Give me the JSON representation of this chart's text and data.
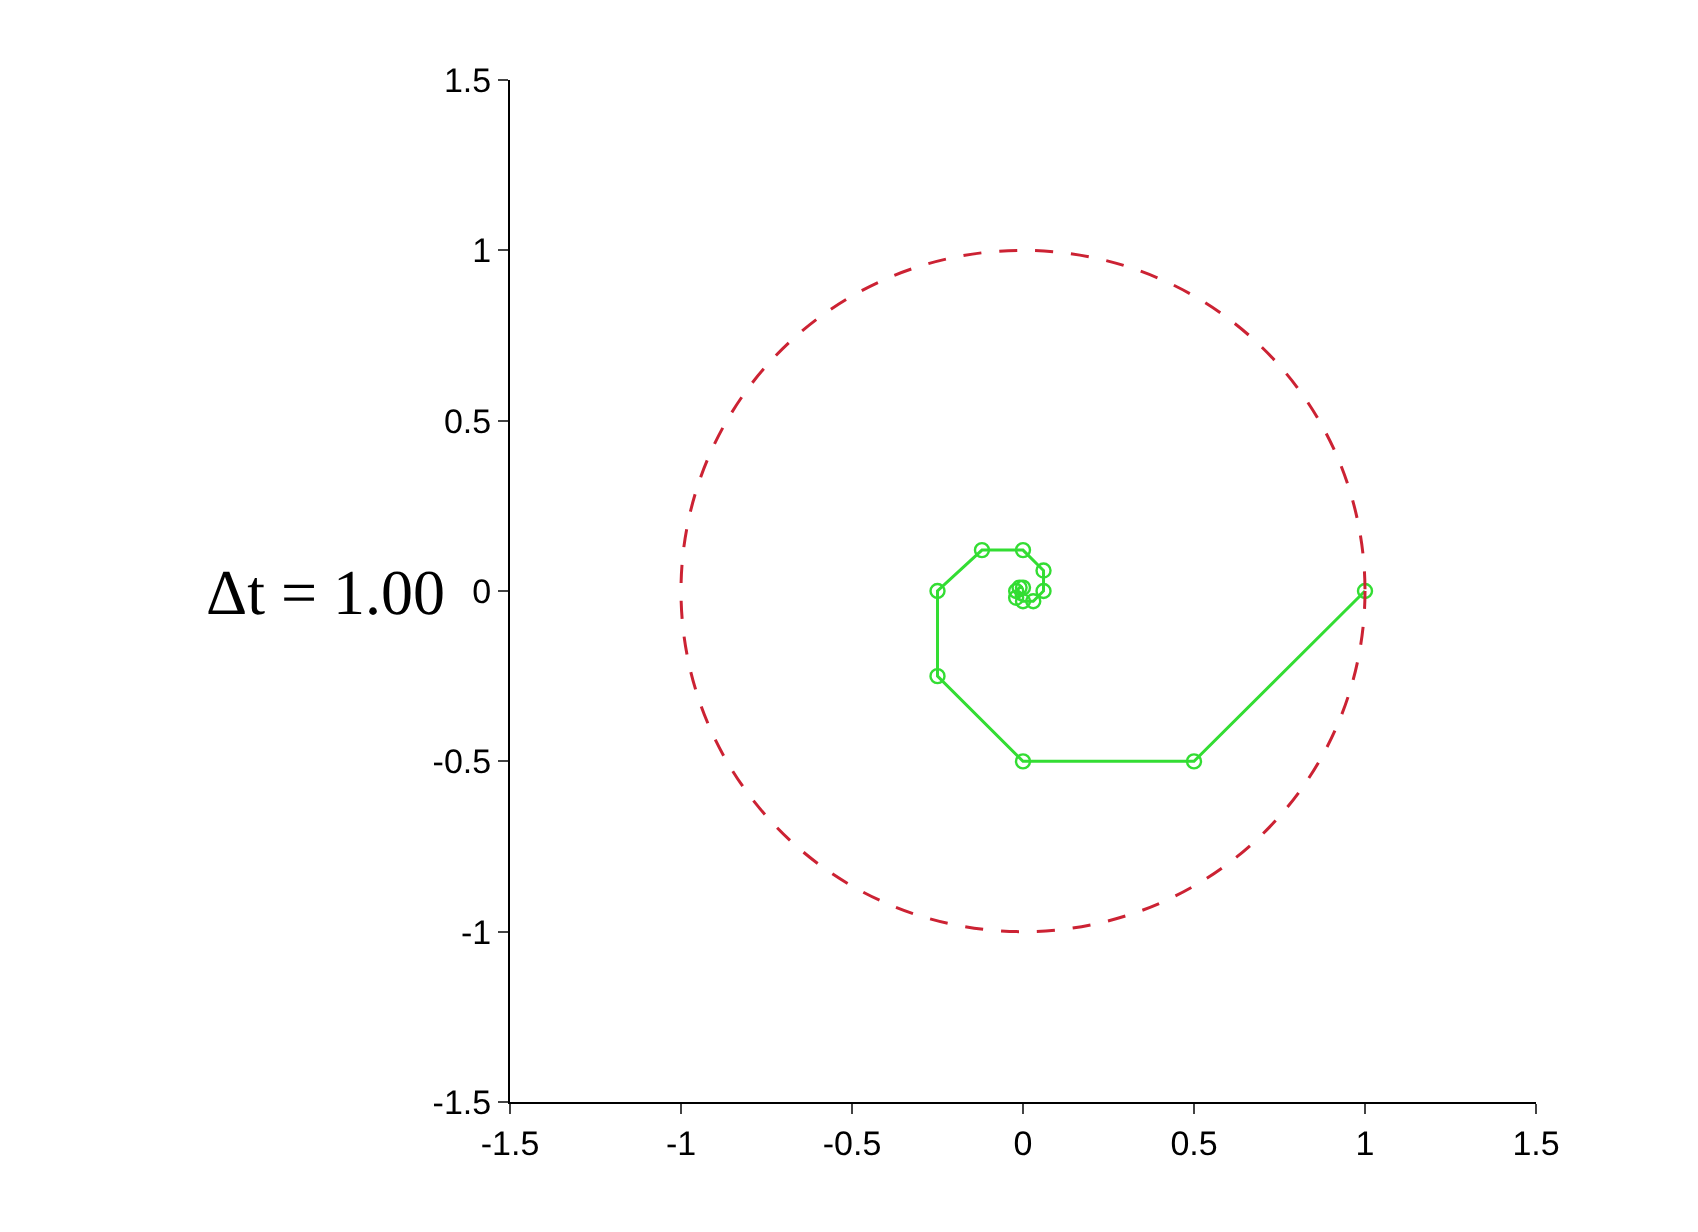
{
  "chart_data": {
    "type": "line",
    "annotations": [
      "Δt = 1.00"
    ],
    "series": [
      {
        "color": "#33dd33",
        "marker": "circle",
        "line_style": "solid",
        "x": [
          1,
          0.5,
          0,
          -0.25,
          -0.25,
          -0.12,
          0,
          0.06,
          0.06,
          0.03,
          0,
          -0.02,
          -0.02,
          -0.01,
          0
        ],
        "values": [
          0,
          -0.5,
          -0.5,
          -0.25,
          0,
          0.12,
          0.12,
          0.06,
          0,
          -0.03,
          -0.03,
          -0.02,
          0,
          0.01,
          0.01
        ]
      }
    ],
    "xlim": [
      -1.5,
      1.5
    ],
    "xticks": [
      -1.5,
      -1,
      -0.5,
      0,
      0.5,
      1,
      1.5
    ],
    "ylim": [
      -1.5,
      1.5
    ],
    "yticks": [
      -1.5,
      -1,
      -0.5,
      0,
      0.5,
      1,
      1.5
    ]
  }
}
